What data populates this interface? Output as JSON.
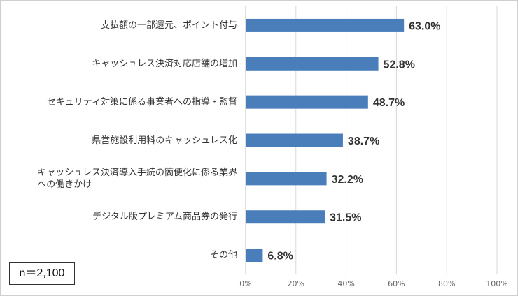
{
  "sample_note": "n＝2,100",
  "chart_data": {
    "type": "bar",
    "orientation": "horizontal",
    "categories": [
      "支払額の一部還元、ポイント付与",
      "キャッシュレス決済対応店舗の増加",
      "セキュリティ対策に係る事業者への指導・監督",
      "県営施設利用料のキャッシュレス化",
      "キャッシュレス決済導入手続の簡便化に係る業界\nへの働きかけ",
      "デジタル版プレミアム商品券の発行",
      "その他"
    ],
    "values": [
      63.0,
      52.8,
      48.7,
      38.7,
      32.2,
      31.5,
      6.8
    ],
    "data_labels": [
      "63.0%",
      "52.8%",
      "48.7%",
      "38.7%",
      "32.2%",
      "31.5%",
      "6.8%"
    ],
    "xlim": [
      0,
      100
    ],
    "xticks": [
      "0%",
      "20%",
      "40%",
      "60%",
      "80%",
      "100%"
    ],
    "grid": true,
    "bar_color": "#4a7ebb"
  }
}
